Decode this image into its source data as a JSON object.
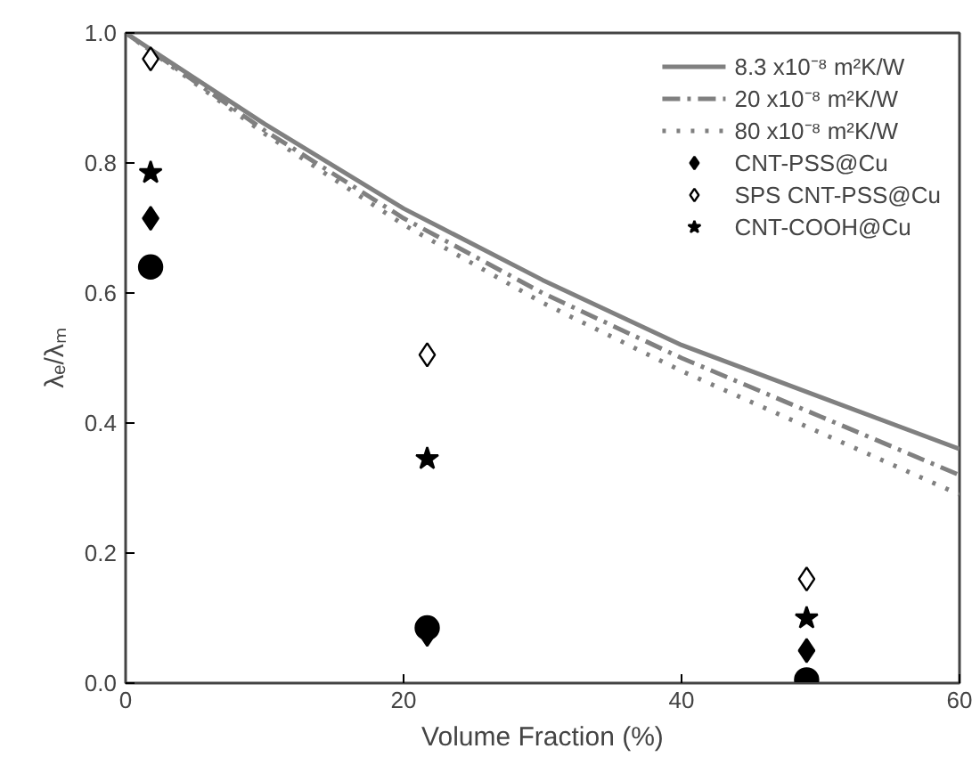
{
  "chart_data": {
    "type": "scatter",
    "xlabel": "Volume Fraction (%)",
    "ylabel": "λₑ/λₘ",
    "xlim": [
      0,
      60
    ],
    "ylim": [
      0,
      1.0
    ],
    "xticks": [
      0,
      20,
      40,
      60
    ],
    "yticks": [
      {
        "value": 0,
        "label": "0.0"
      },
      0.2,
      0.4,
      0.6,
      0.8,
      {
        "value": 1.0,
        "label": "1.0"
      }
    ],
    "grid": false,
    "legend": "top right",
    "series": [
      {
        "type": "line",
        "name": "8.3 x10⁻⁸ m²K/W",
        "color": "#808080",
        "line_style": "solid",
        "x": [
          0,
          10,
          20,
          30,
          40,
          50,
          60
        ],
        "values": [
          1.0,
          0.86,
          0.73,
          0.62,
          0.52,
          0.44,
          0.36
        ]
      },
      {
        "type": "line",
        "name": "20 x10⁻⁸ m²K/W",
        "color": "#808080",
        "line_style": "dashdot",
        "x": [
          0,
          10,
          20,
          30,
          40,
          50,
          60
        ],
        "values": [
          1.0,
          0.85,
          0.715,
          0.6,
          0.5,
          0.41,
          0.32
        ]
      },
      {
        "type": "line",
        "name": "80 x10⁻⁸ m²K/W",
        "color": "#808080",
        "line_style": "dotted",
        "x": [
          0,
          10,
          20,
          30,
          40,
          50,
          60
        ],
        "values": [
          1.0,
          0.845,
          0.705,
          0.585,
          0.48,
          0.385,
          0.29
        ]
      },
      {
        "type": "scatter",
        "color": "#000000",
        "marker": "circle",
        "x": [
          1.8,
          21.7,
          49
        ],
        "values": [
          0.64,
          0.085,
          0.005
        ]
      },
      {
        "type": "scatter",
        "name": "CNT-PSS@Cu",
        "color": "#000000",
        "marker": "diamond",
        "x": [
          1.8,
          21.7,
          49
        ],
        "values": [
          0.715,
          0.075,
          0.05
        ]
      },
      {
        "type": "scatter",
        "name": "SPS CNT-PSS@Cu",
        "color": "#ffffff",
        "marker": "diamond",
        "x": [
          1.8,
          21.7,
          49
        ],
        "values": [
          0.96,
          0.505,
          0.16
        ]
      },
      {
        "type": "scatter",
        "name": "CNT-COOH@Cu",
        "color": "#000000",
        "marker": "star",
        "x": [
          1.8,
          21.7,
          49
        ],
        "values": [
          0.785,
          0.345,
          0.1
        ]
      }
    ]
  }
}
